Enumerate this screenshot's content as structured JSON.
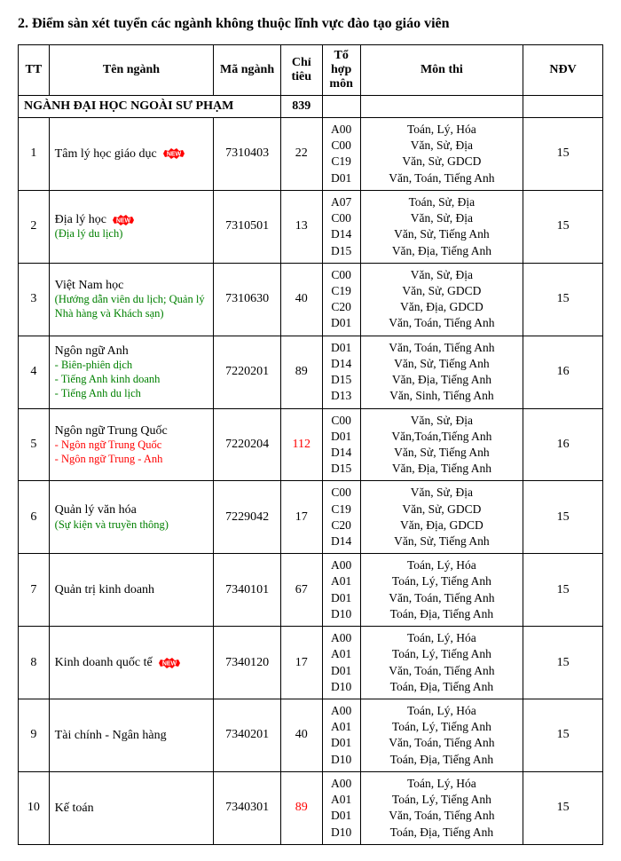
{
  "heading": "2. Điểm sàn xét tuyển các ngành không thuộc lĩnh vực đào tạo giáo viên",
  "columns": {
    "tt": "TT",
    "ten_nganh": "Tên ngành",
    "ma_nganh": "Mã ngành",
    "chi_tieu": "Chỉ tiêu",
    "to_hop_mon": "Tổ hợp môn",
    "mon_thi": "Môn thi",
    "ndv": "NĐV"
  },
  "section": {
    "label": "NGÀNH ĐẠI HỌC NGOÀI SƯ PHẠM",
    "chi_tieu": "839"
  },
  "badge": {
    "text": "NEW",
    "fill": "#ff0000",
    "text_color": "#ffffff"
  },
  "rows": [
    {
      "tt": "1",
      "name": "Tâm lý học giáo dục",
      "badge": true,
      "subs": [],
      "ma": "7310403",
      "chi": "22",
      "chi_red": false,
      "to": [
        "A00",
        "C00",
        "C19",
        "D01"
      ],
      "mon": [
        "Toán, Lý, Hóa",
        "Văn, Sử, Địa",
        "Văn, Sử, GDCD",
        "Văn, Toán, Tiếng Anh"
      ],
      "ndv": "15"
    },
    {
      "tt": "2",
      "name": "Địa lý học",
      "badge": true,
      "subs": [
        {
          "text": "(Địa lý du lịch)",
          "color": "green"
        }
      ],
      "ma": "7310501",
      "chi": "13",
      "chi_red": false,
      "to": [
        "A07",
        "C00",
        "D14",
        "D15"
      ],
      "mon": [
        "Toán, Sử, Địa",
        "Văn, Sử, Địa",
        "Văn, Sử, Tiếng Anh",
        "Văn, Địa, Tiếng Anh"
      ],
      "ndv": "15"
    },
    {
      "tt": "3",
      "name": "Việt Nam học",
      "badge": false,
      "subs": [
        {
          "text": "(Hướng dẫn viên du lịch; Quản lý Nhà hàng và Khách sạn)",
          "color": "green"
        }
      ],
      "ma": "7310630",
      "chi": "40",
      "chi_red": false,
      "to": [
        "C00",
        "C19",
        "C20",
        "D01"
      ],
      "mon": [
        "Văn, Sử, Địa",
        "Văn, Sử, GDCD",
        "Văn, Địa, GDCD",
        "Văn, Toán, Tiếng Anh"
      ],
      "ndv": "15"
    },
    {
      "tt": "4",
      "name": "Ngôn ngữ Anh",
      "badge": false,
      "subs": [
        {
          "text": "- Biên-phiên dịch",
          "color": "green"
        },
        {
          "text": "- Tiếng Anh kinh doanh",
          "color": "green"
        },
        {
          "text": "- Tiếng Anh du lịch",
          "color": "green"
        }
      ],
      "ma": "7220201",
      "chi": "89",
      "chi_red": false,
      "to": [
        "D01",
        "D14",
        "D15",
        "D13"
      ],
      "mon": [
        "Văn, Toán, Tiếng Anh",
        "Văn, Sử, Tiếng Anh",
        "Văn, Địa, Tiếng Anh",
        "Văn, Sinh, Tiếng Anh"
      ],
      "ndv": "16"
    },
    {
      "tt": "5",
      "name": "Ngôn ngữ Trung Quốc",
      "badge": false,
      "subs": [
        {
          "text": "- Ngôn ngữ Trung Quốc",
          "color": "red"
        },
        {
          "text": "- Ngôn ngữ Trung - Anh",
          "color": "red"
        }
      ],
      "ma": "7220204",
      "chi": "112",
      "chi_red": true,
      "to": [
        "C00",
        "D01",
        "D14",
        "D15"
      ],
      "mon": [
        "Văn, Sử, Địa",
        "Văn,Toán,Tiếng Anh",
        "Văn, Sử, Tiếng Anh",
        "Văn, Địa, Tiếng Anh"
      ],
      "ndv": "16"
    },
    {
      "tt": "6",
      "name": "Quản lý văn hóa",
      "badge": false,
      "subs": [
        {
          "text": "(Sự kiện và truyền thông)",
          "color": "green"
        }
      ],
      "ma": "7229042",
      "chi": "17",
      "chi_red": false,
      "to": [
        "C00",
        "C19",
        "C20",
        "D14"
      ],
      "mon": [
        "Văn, Sử, Địa",
        "Văn, Sử, GDCD",
        "Văn, Địa, GDCD",
        "Văn, Sử, Tiếng Anh"
      ],
      "ndv": "15"
    },
    {
      "tt": "7",
      "name": "Quản trị kinh doanh",
      "badge": false,
      "subs": [],
      "ma": "7340101",
      "chi": "67",
      "chi_red": false,
      "to": [
        "A00",
        "A01",
        "D01",
        "D10"
      ],
      "mon": [
        "Toán, Lý, Hóa",
        "Toán, Lý, Tiếng Anh",
        "Văn, Toán, Tiếng Anh",
        "Toán, Địa, Tiếng Anh"
      ],
      "ndv": "15"
    },
    {
      "tt": "8",
      "name": "Kinh doanh quốc tế",
      "badge": true,
      "subs": [],
      "ma": "7340120",
      "chi": "17",
      "chi_red": false,
      "to": [
        "A00",
        "A01",
        "D01",
        "D10"
      ],
      "mon": [
        "Toán, Lý, Hóa",
        "Toán, Lý, Tiếng Anh",
        "Văn, Toán, Tiếng Anh",
        "Toán, Địa, Tiếng Anh"
      ],
      "ndv": "15"
    },
    {
      "tt": "9",
      "name": "Tài chính - Ngân hàng",
      "badge": false,
      "subs": [],
      "ma": "7340201",
      "chi": "40",
      "chi_red": false,
      "to": [
        "A00",
        "A01",
        "D01",
        "D10"
      ],
      "mon": [
        "Toán, Lý, Hóa",
        "Toán, Lý, Tiếng Anh",
        "Văn, Toán, Tiếng Anh",
        "Toán, Địa, Tiếng Anh"
      ],
      "ndv": "15"
    },
    {
      "tt": "10",
      "name": "Kế toán",
      "badge": false,
      "subs": [],
      "ma": "7340301",
      "chi": "89",
      "chi_red": true,
      "to": [
        "A00",
        "A01",
        "D01",
        "D10"
      ],
      "mon": [
        "Toán, Lý, Hóa",
        "Toán, Lý, Tiếng Anh",
        "Văn, Toán, Tiếng Anh",
        "Toán, Địa, Tiếng Anh"
      ],
      "ndv": "15"
    }
  ]
}
